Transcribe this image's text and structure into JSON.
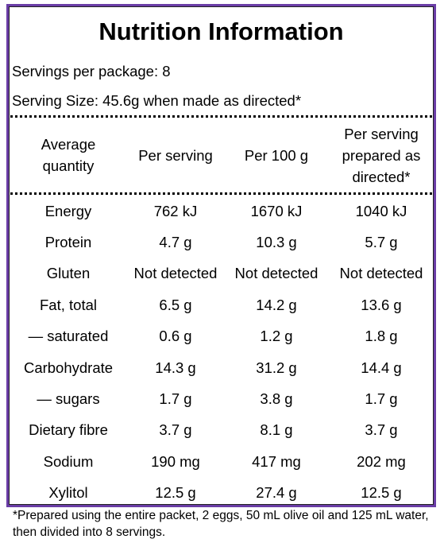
{
  "title": "Nutrition Information",
  "servings": "Servings per package: 8",
  "serving_size": "Serving Size: 45.6g when made as directed*",
  "table": {
    "headers": [
      "Average quantity",
      "Per serving",
      "Per 100 g",
      "Per serving prepared as directed*"
    ],
    "rows": [
      [
        "Energy",
        "762 kJ",
        "1670 kJ",
        "1040 kJ"
      ],
      [
        "Protein",
        "4.7 g",
        "10.3 g",
        "5.7 g"
      ],
      [
        "Gluten",
        "Not detected",
        "Not detected",
        "Not detected"
      ],
      [
        "Fat, total",
        "6.5 g",
        "14.2 g",
        "13.6 g"
      ],
      [
        "— saturated",
        "0.6 g",
        "1.2 g",
        "1.8 g"
      ],
      [
        "Carbohydrate",
        "14.3 g",
        "31.2 g",
        "14.4 g"
      ],
      [
        "— sugars",
        "1.7 g",
        "3.8 g",
        "1.7 g"
      ],
      [
        "Dietary fibre",
        "3.7 g",
        "8.1 g",
        "3.7 g"
      ],
      [
        "Sodium",
        "190 mg",
        "417 mg",
        "202 mg"
      ],
      [
        "Xylitol",
        "12.5 g",
        "27.4 g",
        "12.5 g"
      ]
    ]
  },
  "footnote": "*Prepared using the entire packet, 2 eggs, 50 mL olive oil and 125 mL water, then divided into 8 servings."
}
